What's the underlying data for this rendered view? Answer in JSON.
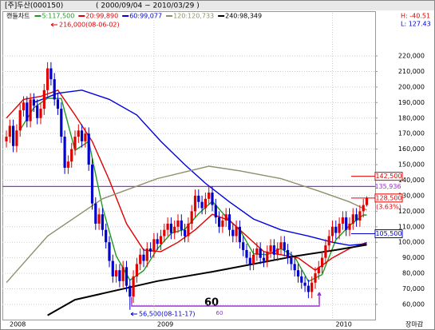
{
  "chart_data": {
    "type": "candlestick",
    "title": "[주]두산(000150)",
    "subtitle": "( 2000/09/04 ~ 2010/03/29 )",
    "h_label": "H: -40.51",
    "l_label": "L: 127.43",
    "footer": "장마감",
    "candle_label": "캔들차트",
    "up_color": "#e00000",
    "down_color": "#0000cc",
    "ylim": [
      50200,
      247800
    ],
    "yticks": [
      {
        "value": 60000,
        "label": "60,000"
      },
      {
        "value": 70000,
        "label": "70,000"
      },
      {
        "value": 80000,
        "label": "80,000"
      },
      {
        "value": 90000,
        "label": "90,000"
      },
      {
        "value": 100000,
        "label": "100,000"
      },
      {
        "value": 110000,
        "label": "110,000"
      },
      {
        "value": 120000,
        "label": "120,000"
      },
      {
        "value": 130000,
        "label": "130,000"
      },
      {
        "value": 140000,
        "label": "140,000"
      },
      {
        "value": 150000,
        "label": "150,000"
      },
      {
        "value": 160000,
        "label": "160,000"
      },
      {
        "value": 170000,
        "label": "170,000"
      },
      {
        "value": 180000,
        "label": "180,000"
      },
      {
        "value": 190000,
        "label": "190,000"
      },
      {
        "value": 200000,
        "label": "200,000"
      },
      {
        "value": 210000,
        "label": "210,000"
      },
      {
        "value": 220000,
        "label": "220,000"
      }
    ],
    "xticks": [
      {
        "value": 0,
        "label": "2008"
      },
      {
        "value": 43,
        "label": "2009"
      },
      {
        "value": 95,
        "label": "2010"
      }
    ],
    "grid": true,
    "candles": {
      "open": [
        165000,
        168000,
        175000,
        162000,
        172000,
        185000,
        190000,
        178000,
        192000,
        188000,
        180000,
        186000,
        198000,
        212000,
        205000,
        192000,
        186000,
        168000,
        148000,
        152000,
        160000,
        168000,
        172000,
        165000,
        170000,
        150000,
        125000,
        112000,
        118000,
        108000,
        100000,
        88000,
        78000,
        82000,
        75000,
        84000,
        72000,
        65000,
        78000,
        86000,
        92000,
        88000,
        96000,
        94000,
        102000,
        99000,
        104000,
        108000,
        112000,
        106000,
        110000,
        114000,
        108000,
        104000,
        112000,
        120000,
        130000,
        126000,
        122000,
        128000,
        132000,
        124000,
        116000,
        110000,
        114000,
        118000,
        108000,
        104000,
        110000,
        100000,
        95000,
        90000,
        86000,
        92000,
        96000,
        90000,
        88000,
        94000,
        98000,
        92000,
        96000,
        100000,
        95000,
        90000,
        86000,
        82000,
        78000,
        74000,
        72000,
        68000,
        74000,
        80000,
        84000,
        90000,
        98000,
        104000,
        110000,
        106000,
        112000,
        116000,
        108000,
        112000,
        118000,
        114000,
        120000,
        124000
      ],
      "high": [
        172000,
        179000,
        179000,
        176000,
        189000,
        194000,
        194000,
        196000,
        196000,
        192000,
        190000,
        202000,
        216000,
        216000,
        209000,
        196000,
        190000,
        172000,
        156000,
        164000,
        172000,
        176000,
        176000,
        174000,
        174000,
        154000,
        129000,
        122000,
        122000,
        112000,
        104000,
        92000,
        86000,
        86000,
        88000,
        88000,
        76000,
        82000,
        90000,
        96000,
        96000,
        100000,
        100000,
        106000,
        106000,
        108000,
        112000,
        116000,
        116000,
        114000,
        118000,
        118000,
        112000,
        116000,
        124000,
        134000,
        134000,
        130000,
        132000,
        136000,
        136000,
        128000,
        120000,
        118000,
        122000,
        122000,
        112000,
        114000,
        114000,
        104000,
        99000,
        94000,
        96000,
        100000,
        100000,
        94000,
        98000,
        102000,
        102000,
        100000,
        104000,
        104000,
        99000,
        94000,
        90000,
        86000,
        82000,
        78000,
        76000,
        78000,
        84000,
        88000,
        94000,
        102000,
        108000,
        114000,
        114000,
        116000,
        120000,
        120000,
        116000,
        122000,
        122000,
        124000,
        128000,
        129500
      ],
      "low": [
        161000,
        164000,
        158000,
        158000,
        168000,
        181000,
        174000,
        174000,
        184000,
        176000,
        176000,
        182000,
        194000,
        201000,
        188000,
        182000,
        164000,
        144000,
        144000,
        148000,
        156000,
        164000,
        161000,
        161000,
        146000,
        121000,
        108000,
        108000,
        104000,
        96000,
        84000,
        74000,
        74000,
        71000,
        71000,
        68000,
        56500,
        61000,
        74000,
        82000,
        84000,
        84000,
        90000,
        90000,
        95000,
        95000,
        100000,
        104000,
        102000,
        102000,
        106000,
        104000,
        100000,
        100000,
        108000,
        116000,
        122000,
        118000,
        118000,
        124000,
        120000,
        112000,
        106000,
        106000,
        110000,
        104000,
        100000,
        100000,
        96000,
        91000,
        86000,
        82000,
        82000,
        88000,
        86000,
        84000,
        84000,
        90000,
        88000,
        88000,
        92000,
        91000,
        86000,
        82000,
        78000,
        74000,
        70000,
        68000,
        64000,
        64000,
        70000,
        76000,
        80000,
        86000,
        94000,
        100000,
        102000,
        102000,
        108000,
        104000,
        104000,
        108000,
        110000,
        110000,
        116000,
        123000
      ],
      "close": [
        168000,
        175000,
        162000,
        172000,
        185000,
        190000,
        178000,
        192000,
        188000,
        180000,
        186000,
        198000,
        212000,
        205000,
        192000,
        186000,
        168000,
        148000,
        152000,
        160000,
        168000,
        172000,
        165000,
        170000,
        150000,
        125000,
        112000,
        118000,
        108000,
        100000,
        88000,
        78000,
        82000,
        75000,
        84000,
        72000,
        65000,
        78000,
        86000,
        92000,
        88000,
        96000,
        94000,
        102000,
        99000,
        104000,
        108000,
        112000,
        106000,
        110000,
        114000,
        108000,
        104000,
        112000,
        120000,
        130000,
        126000,
        122000,
        128000,
        132000,
        124000,
        116000,
        110000,
        114000,
        118000,
        108000,
        104000,
        110000,
        100000,
        95000,
        90000,
        86000,
        92000,
        96000,
        90000,
        88000,
        94000,
        98000,
        92000,
        96000,
        100000,
        95000,
        90000,
        86000,
        82000,
        78000,
        74000,
        72000,
        68000,
        74000,
        80000,
        84000,
        90000,
        98000,
        104000,
        110000,
        106000,
        112000,
        116000,
        108000,
        112000,
        118000,
        114000,
        120000,
        124000,
        128500
      ]
    },
    "series": [
      {
        "name": "5:117,500",
        "color": "#1f9a1f",
        "x": [
          4,
          8,
          12,
          16,
          20,
          24,
          28,
          32,
          36,
          40,
          44,
          48,
          52,
          56,
          60,
          64,
          68,
          72,
          76,
          80,
          84,
          88,
          92,
          96,
          100,
          104,
          105
        ],
        "values": [
          172400,
          186600,
          192800,
          192600,
          159200,
          165000,
          122600,
          91200,
          75600,
          81800,
          95800,
          105800,
          108400,
          118400,
          126400,
          116400,
          108000,
          92600,
          92000,
          96000,
          90600,
          74800,
          79200,
          101600,
          110800,
          117600,
          117500
        ]
      },
      {
        "name": "20:99,890",
        "color": "#e00000",
        "x": [
          0,
          5,
          10,
          15,
          20,
          25,
          30,
          35,
          40,
          45,
          50,
          55,
          60,
          65,
          70,
          75,
          80,
          85,
          90,
          95,
          100,
          105
        ],
        "values": [
          180000,
          192000,
          194000,
          198000,
          182000,
          165000,
          140000,
          112000,
          95000,
          94000,
          100000,
          108000,
          118000,
          114000,
          104000,
          94000,
          92000,
          90000,
          82000,
          90000,
          96000,
          99890
        ]
      },
      {
        "name": "60:99,077",
        "color": "#0000e0",
        "x": [
          8,
          15,
          22,
          30,
          38,
          45,
          52,
          58,
          65,
          72,
          80,
          88,
          95,
          100,
          105
        ],
        "values": [
          190000,
          196000,
          198000,
          192000,
          182000,
          165000,
          150000,
          138000,
          126000,
          115000,
          108000,
          104000,
          100000,
          98000,
          99077
        ]
      },
      {
        "name": "120:120,733",
        "color": "#8f8f6a",
        "x": [
          0,
          12,
          28,
          44,
          59,
          68,
          80,
          91,
          100,
          105
        ],
        "values": [
          74000,
          104000,
          128000,
          141000,
          149000,
          146000,
          141000,
          133000,
          126000,
          120733
        ]
      },
      {
        "name": "240:98,349",
        "color": "#000000",
        "x": [
          12,
          20,
          44,
          60,
          72,
          84,
          96,
          105
        ],
        "values": [
          53000,
          63000,
          75000,
          81000,
          86000,
          91000,
          95000,
          98349
        ]
      }
    ],
    "reference_line": {
      "value": 135936,
      "label": "135,936",
      "color": "#9b30d0"
    },
    "price_markers": [
      {
        "value": 142500,
        "label": "142,500",
        "color": "#e00000"
      },
      {
        "value": 128500,
        "label": "128,500",
        "note": "(3.63%)",
        "color": "#e00000"
      },
      {
        "value": 105500,
        "label": "105,500",
        "color": "#0000cc"
      }
    ],
    "high_note": "216,000(08-06-02)",
    "low_note": "56,500(08-11-17)",
    "period_label": "60",
    "period_sublabel": "60"
  }
}
